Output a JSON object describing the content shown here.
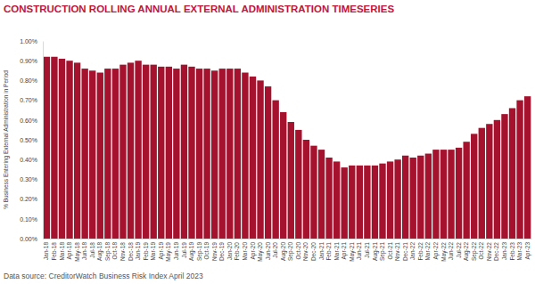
{
  "chart_data": {
    "type": "bar",
    "title": "CONSTRUCTION ROLLING ANNUAL EXTERNAL ADMINISTRATION TIMESERIES",
    "y_label": "% Business Entering External Administration in Period",
    "annotations": [
      "Data source: CreditorWatch Business Risk Index April 2023"
    ],
    "categories": [
      "Jan-18",
      "Feb-18",
      "Mar-18",
      "Apr-18",
      "May-18",
      "Jun-18",
      "Jul-18",
      "Aug-18",
      "Sep-18",
      "Oct-18",
      "Nov-18",
      "Dec-18",
      "Jan-19",
      "Feb-19",
      "Mar-19",
      "Apr-19",
      "May-19",
      "Jun-19",
      "Jul-19",
      "Aug-19",
      "Sep-19",
      "Oct-19",
      "Nov-19",
      "Dec-19",
      "Jan-20",
      "Feb-20",
      "Mar-20",
      "Apr-20",
      "May-20",
      "Jun-20",
      "Jul-20",
      "Aug-20",
      "Sep-20",
      "Oct-20",
      "Nov-20",
      "Dec-20",
      "Jan-21",
      "Feb-21",
      "Mar-21",
      "Apr-21",
      "May-21",
      "Jun-21",
      "Jul-21",
      "Aug-21",
      "Sep-21",
      "Oct-21",
      "Nov-21",
      "Dec-21",
      "Jan-22",
      "Feb-22",
      "Mar-22",
      "Apr-22",
      "May-22",
      "Jun-22",
      "Jul-22",
      "Aug-22",
      "Sep-22",
      "Oct-22",
      "Nov-22",
      "Dec-22",
      "Jan-23",
      "Feb-23",
      "Mar-23",
      "Apr-23"
    ],
    "values": [
      0.92,
      0.92,
      0.91,
      0.9,
      0.89,
      0.86,
      0.85,
      0.84,
      0.86,
      0.86,
      0.88,
      0.89,
      0.9,
      0.88,
      0.88,
      0.87,
      0.87,
      0.86,
      0.88,
      0.87,
      0.86,
      0.86,
      0.85,
      0.86,
      0.86,
      0.86,
      0.84,
      0.82,
      0.8,
      0.77,
      0.7,
      0.64,
      0.59,
      0.55,
      0.5,
      0.47,
      0.45,
      0.41,
      0.39,
      0.36,
      0.37,
      0.37,
      0.37,
      0.37,
      0.38,
      0.39,
      0.4,
      0.42,
      0.41,
      0.42,
      0.43,
      0.45,
      0.45,
      0.45,
      0.46,
      0.49,
      0.53,
      0.56,
      0.58,
      0.6,
      0.63,
      0.66,
      0.7,
      0.72
    ],
    "color": "#a4122e",
    "ylim": [
      0,
      1
    ],
    "yticks": [
      {
        "value": 0,
        "label": "0.00%"
      },
      {
        "value": 0.1,
        "label": "0.10%"
      },
      {
        "value": 0.2,
        "label": "0.20%"
      },
      {
        "value": 0.3,
        "label": "0.30%"
      },
      {
        "value": 0.4,
        "label": "0.40%"
      },
      {
        "value": 0.5,
        "label": "0.50%"
      },
      {
        "value": 0.6,
        "label": "0.60%"
      },
      {
        "value": 0.7,
        "label": "0.70%"
      },
      {
        "value": 0.8,
        "label": "0.80%"
      },
      {
        "value": 0.9,
        "label": "0.90%"
      },
      {
        "value": 1,
        "label": "1.00%"
      }
    ],
    "grid": false
  }
}
